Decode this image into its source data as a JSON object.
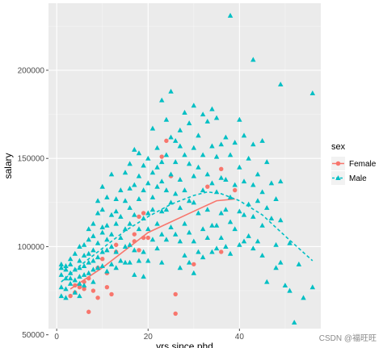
{
  "chart_data": {
    "type": "scatter",
    "xlabel": "yrs.since.phd",
    "ylabel": "salary",
    "xlim": [
      -1.8,
      57.8
    ],
    "ylim": [
      53500,
      238000
    ],
    "x_ticks": [
      0,
      20,
      40
    ],
    "y_ticks": [
      50000,
      100000,
      150000,
      200000
    ],
    "y_tick_labels": [
      "50000",
      "100000",
      "150000",
      "200000"
    ],
    "grid": true,
    "legend_placement": "right",
    "legend_title": "sex",
    "series": [
      {
        "name": "Female",
        "marker": "circle",
        "color": "#F8766D",
        "points": [
          [
            3,
            72000
          ],
          [
            4,
            78000
          ],
          [
            4,
            74000
          ],
          [
            5,
            77000
          ],
          [
            6,
            80000
          ],
          [
            6,
            76000
          ],
          [
            7,
            82000
          ],
          [
            7,
            63000
          ],
          [
            8,
            75000
          ],
          [
            9,
            88000
          ],
          [
            9,
            71000
          ],
          [
            10,
            93000
          ],
          [
            11,
            85000
          ],
          [
            11,
            77000
          ],
          [
            12,
            73000
          ],
          [
            13,
            101000
          ],
          [
            13,
            97000
          ],
          [
            17,
            107000
          ],
          [
            17,
            103000
          ],
          [
            18,
            117000
          ],
          [
            18,
            98000
          ],
          [
            19,
            119000
          ],
          [
            19,
            105000
          ],
          [
            20,
            105000
          ],
          [
            23,
            151000
          ],
          [
            24,
            160000
          ],
          [
            25,
            140000
          ],
          [
            26,
            62000
          ],
          [
            26,
            73000
          ],
          [
            30,
            90000
          ],
          [
            33,
            134000
          ],
          [
            36,
            144000
          ],
          [
            36,
            97000
          ],
          [
            39,
            132000
          ]
        ],
        "fit": [
          [
            3,
            76000
          ],
          [
            10,
            88000
          ],
          [
            20,
            108000
          ],
          [
            30,
            120000
          ],
          [
            35,
            126000
          ],
          [
            39,
            127000
          ]
        ]
      },
      {
        "name": "Male",
        "marker": "triangle",
        "color": "#00BFC4",
        "points": [
          [
            1,
            88000
          ],
          [
            1,
            90000
          ],
          [
            1,
            84000
          ],
          [
            1,
            77000
          ],
          [
            1,
            72000
          ],
          [
            2,
            89000
          ],
          [
            2,
            82000
          ],
          [
            2,
            87000
          ],
          [
            2,
            71000
          ],
          [
            2,
            76000
          ],
          [
            3,
            90000
          ],
          [
            3,
            85000
          ],
          [
            3,
            79000
          ],
          [
            3,
            82000
          ],
          [
            3,
            93000
          ],
          [
            4,
            87000
          ],
          [
            4,
            81000
          ],
          [
            4,
            96000
          ],
          [
            4,
            74000
          ],
          [
            5,
            92000
          ],
          [
            5,
            88000
          ],
          [
            5,
            83000
          ],
          [
            5,
            79000
          ],
          [
            5,
            100000
          ],
          [
            5,
            72000
          ],
          [
            6,
            95000
          ],
          [
            6,
            89000
          ],
          [
            6,
            84000
          ],
          [
            6,
            101000
          ],
          [
            6,
            78000
          ],
          [
            7,
            96000
          ],
          [
            7,
            91000
          ],
          [
            7,
            85000
          ],
          [
            7,
            110000
          ],
          [
            7,
            104000
          ],
          [
            8,
            98000
          ],
          [
            8,
            92000
          ],
          [
            8,
            87000
          ],
          [
            8,
            113000
          ],
          [
            8,
            106000
          ],
          [
            8,
            80000
          ],
          [
            9,
            119000
          ],
          [
            9,
            102000
          ],
          [
            9,
            94000
          ],
          [
            9,
            88000
          ],
          [
            9,
            126000
          ],
          [
            10,
            121000
          ],
          [
            10,
            108000
          ],
          [
            10,
            97000
          ],
          [
            10,
            89000
          ],
          [
            10,
            111000
          ],
          [
            10,
            134000
          ],
          [
            11,
            112000
          ],
          [
            11,
            98000
          ],
          [
            11,
            86000
          ],
          [
            11,
            128000
          ],
          [
            11,
            104000
          ],
          [
            12,
            118000
          ],
          [
            12,
            100000
          ],
          [
            12,
            90000
          ],
          [
            12,
            141000
          ],
          [
            12,
            107000
          ],
          [
            13,
            127000
          ],
          [
            13,
            113000
          ],
          [
            13,
            97000
          ],
          [
            13,
            120000
          ],
          [
            13,
            88000
          ],
          [
            14,
            132000
          ],
          [
            14,
            105000
          ],
          [
            14,
            117000
          ],
          [
            14,
            92000
          ],
          [
            15,
            126000
          ],
          [
            15,
            110000
          ],
          [
            15,
            100000
          ],
          [
            15,
            91000
          ],
          [
            15,
            142000
          ],
          [
            16,
            147000
          ],
          [
            16,
            122000
          ],
          [
            16,
            113000
          ],
          [
            16,
            101000
          ],
          [
            16,
            91000
          ],
          [
            16,
            133000
          ],
          [
            17,
            155000
          ],
          [
            17,
            135000
          ],
          [
            17,
            118000
          ],
          [
            17,
            98000
          ],
          [
            17,
            84000
          ],
          [
            18,
            140000
          ],
          [
            18,
            127000
          ],
          [
            18,
            110000
          ],
          [
            18,
            92000
          ],
          [
            18,
            153000
          ],
          [
            19,
            146000
          ],
          [
            19,
            132000
          ],
          [
            19,
            116000
          ],
          [
            19,
            97000
          ],
          [
            19,
            83000
          ],
          [
            20,
            136000
          ],
          [
            20,
            119000
          ],
          [
            20,
            110000
          ],
          [
            20,
            92000
          ],
          [
            20,
            150000
          ],
          [
            21,
            167000
          ],
          [
            21,
            142000
          ],
          [
            21,
            128000
          ],
          [
            21,
            104000
          ],
          [
            21,
            121000
          ],
          [
            22,
            156000
          ],
          [
            22,
            134000
          ],
          [
            22,
            113000
          ],
          [
            22,
            99000
          ],
          [
            22,
            145000
          ],
          [
            23,
            183000
          ],
          [
            23,
            148000
          ],
          [
            23,
            120000
          ],
          [
            23,
            107000
          ],
          [
            23,
            137000
          ],
          [
            23,
            91000
          ],
          [
            24,
            172000
          ],
          [
            24,
            152000
          ],
          [
            24,
            132000
          ],
          [
            24,
            104000
          ],
          [
            24,
            121000
          ],
          [
            25,
            188000
          ],
          [
            25,
            162000
          ],
          [
            25,
            141000
          ],
          [
            25,
            125000
          ],
          [
            25,
            111000
          ],
          [
            26,
            160000
          ],
          [
            26,
            148000
          ],
          [
            26,
            130000
          ],
          [
            26,
            107000
          ],
          [
            27,
            166000
          ],
          [
            27,
            157000
          ],
          [
            27,
            138000
          ],
          [
            27,
            122000
          ],
          [
            27,
            103000
          ],
          [
            27,
            88000
          ],
          [
            28,
            176000
          ],
          [
            28,
            152000
          ],
          [
            28,
            132000
          ],
          [
            28,
            113000
          ],
          [
            28,
            95000
          ],
          [
            29,
            170000
          ],
          [
            29,
            147000
          ],
          [
            29,
            126000
          ],
          [
            29,
            108000
          ],
          [
            29,
            91000
          ],
          [
            30,
            180000
          ],
          [
            30,
            156000
          ],
          [
            30,
            140000
          ],
          [
            30,
            125000
          ],
          [
            30,
            103000
          ],
          [
            30,
            85000
          ],
          [
            31,
            163000
          ],
          [
            31,
            145000
          ],
          [
            31,
            119000
          ],
          [
            31,
            97000
          ],
          [
            32,
            175000
          ],
          [
            32,
            152000
          ],
          [
            32,
            132000
          ],
          [
            32,
            110000
          ],
          [
            32,
            94000
          ],
          [
            33,
            171000
          ],
          [
            33,
            141000
          ],
          [
            33,
            121000
          ],
          [
            33,
            105000
          ],
          [
            34,
            178000
          ],
          [
            34,
            157000
          ],
          [
            34,
            136000
          ],
          [
            34,
            112000
          ],
          [
            34,
            97000
          ],
          [
            35,
            173000
          ],
          [
            35,
            151000
          ],
          [
            35,
            131000
          ],
          [
            35,
            112000
          ],
          [
            35,
            99000
          ],
          [
            36,
            158000
          ],
          [
            36,
            139000
          ],
          [
            36,
            119000
          ],
          [
            36,
            105000
          ],
          [
            37,
            162000
          ],
          [
            37,
            138000
          ],
          [
            37,
            121000
          ],
          [
            37,
            100000
          ],
          [
            38,
            231000
          ],
          [
            38,
            152000
          ],
          [
            38,
            128000
          ],
          [
            38,
            114000
          ],
          [
            38,
            96000
          ],
          [
            39,
            159000
          ],
          [
            39,
            135000
          ],
          [
            39,
            110000
          ],
          [
            40,
            172000
          ],
          [
            40,
            145000
          ],
          [
            40,
            120000
          ],
          [
            40,
            101000
          ],
          [
            41,
            163000
          ],
          [
            41,
            137000
          ],
          [
            41,
            118000
          ],
          [
            41,
            103000
          ],
          [
            42,
            150000
          ],
          [
            42,
            124000
          ],
          [
            42,
            106000
          ],
          [
            43,
            206000
          ],
          [
            43,
            158000
          ],
          [
            43,
            135000
          ],
          [
            43,
            117000
          ],
          [
            43,
            99000
          ],
          [
            44,
            141000
          ],
          [
            44,
            126000
          ],
          [
            44,
            103000
          ],
          [
            45,
            160000
          ],
          [
            45,
            131000
          ],
          [
            45,
            112000
          ],
          [
            45,
            95000
          ],
          [
            46,
            148000
          ],
          [
            46,
            122000
          ],
          [
            46,
            80000
          ],
          [
            47,
            136000
          ],
          [
            47,
            116000
          ],
          [
            48,
            127000
          ],
          [
            48,
            101000
          ],
          [
            48,
            88000
          ],
          [
            49,
            192000
          ],
          [
            49,
            137000
          ],
          [
            49,
            115000
          ],
          [
            49,
            91000
          ],
          [
            50,
            78000
          ],
          [
            51,
            75000
          ],
          [
            51,
            102000
          ],
          [
            52,
            57000
          ],
          [
            53,
            90000
          ],
          [
            54,
            71000
          ],
          [
            56,
            187000
          ],
          [
            56,
            77000
          ]
        ],
        "fit": [
          [
            1,
            80000
          ],
          [
            5,
            89000
          ],
          [
            10,
            99000
          ],
          [
            15,
            109000
          ],
          [
            20,
            117000
          ],
          [
            25,
            124000
          ],
          [
            30,
            129000
          ],
          [
            33,
            131000
          ],
          [
            36,
            130000
          ],
          [
            40,
            126000
          ],
          [
            45,
            118000
          ],
          [
            50,
            106000
          ],
          [
            56,
            92000
          ]
        ]
      }
    ]
  },
  "watermark": "CSDN @福旺旺",
  "colors": {
    "panel": "#EBEBEB",
    "grid_major": "#FFFFFF",
    "grid_minor": "#F5F5F5",
    "tick": "#4D4D4D"
  }
}
